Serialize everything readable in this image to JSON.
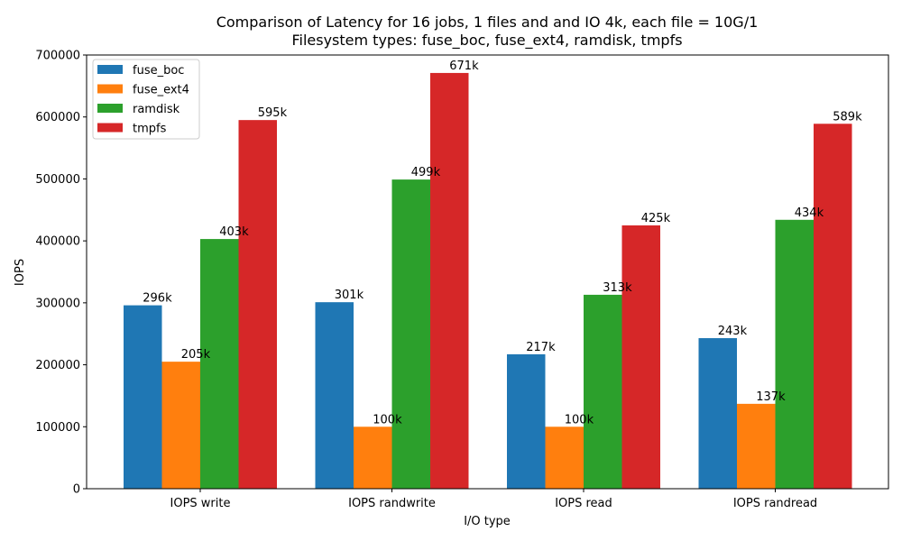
{
  "chart_data": {
    "type": "bar",
    "title": "Comparison of Latency for 16 jobs, 1 files and  and IO 4k, each file = 10G/1",
    "subtitle": "Filesystem types: fuse_boc, fuse_ext4, ramdisk, tmpfs",
    "xlabel": "I/O type",
    "ylabel": "IOPS",
    "ylim": [
      0,
      700000
    ],
    "yticks": [
      0,
      100000,
      200000,
      300000,
      400000,
      500000,
      600000,
      700000
    ],
    "ytick_labels": [
      "0",
      "100000",
      "200000",
      "300000",
      "400000",
      "500000",
      "600000",
      "700000"
    ],
    "categories": [
      "IOPS write",
      "IOPS randwrite",
      "IOPS read",
      "IOPS randread"
    ],
    "legend_position": "top-left",
    "grid": false,
    "series": [
      {
        "name": "fuse_boc",
        "color": "#1f77b4",
        "values": [
          296000,
          301000,
          217000,
          243000
        ],
        "labels": [
          "296k",
          "301k",
          "217k",
          "243k"
        ]
      },
      {
        "name": "fuse_ext4",
        "color": "#ff7f0e",
        "values": [
          205000,
          100000,
          100000,
          137000
        ],
        "labels": [
          "205k",
          "100k",
          "100k",
          "137k"
        ]
      },
      {
        "name": "ramdisk",
        "color": "#2ca02c",
        "values": [
          403000,
          499000,
          313000,
          434000
        ],
        "labels": [
          "403k",
          "499k",
          "313k",
          "434k"
        ]
      },
      {
        "name": "tmpfs",
        "color": "#d62728",
        "values": [
          595000,
          671000,
          425000,
          589000
        ],
        "labels": [
          "595k",
          "671k",
          "425k",
          "589k"
        ]
      }
    ]
  }
}
